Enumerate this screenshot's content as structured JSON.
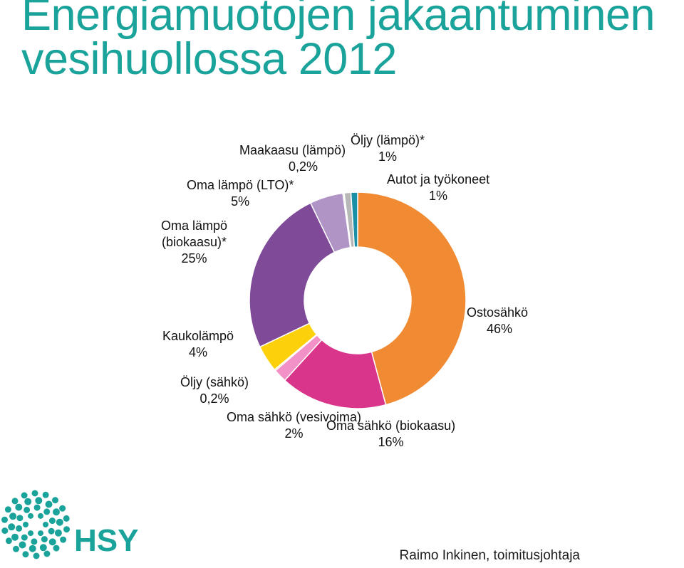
{
  "title": {
    "line1": "Energiamuotojen jakaantuminen",
    "line2": "vesihuollossa 2012"
  },
  "chart_data": {
    "type": "pie",
    "title": "Energiamuotojen jakaantuminen vesihuollossa 2012",
    "donut": true,
    "slices": [
      {
        "label": "Ostosähkö",
        "value": 46,
        "value_label": "46%",
        "color": "#f08a33"
      },
      {
        "label": "Oma sähkö (biokaasu)",
        "value": 16,
        "value_label": "16%",
        "color": "#d9358a"
      },
      {
        "label": "Oma sähkö (vesivoima)",
        "value": 2,
        "value_label": "2%",
        "color": "#f291c7"
      },
      {
        "label": "Öljy (sähkö)",
        "value": 0.2,
        "value_label": "0,2%",
        "color": "#bfa010"
      },
      {
        "label": "Kaukolämpö",
        "value": 4,
        "value_label": "4%",
        "color": "#fcd10c"
      },
      {
        "label": "Oma lämpö (biokaasu)*",
        "value": 25,
        "value_label": "25%",
        "color": "#7f4a97"
      },
      {
        "label": "Oma lämpö (LTO)*",
        "value": 5,
        "value_label": "5%",
        "color": "#b094c6"
      },
      {
        "label": "Maakaasu (lämpö)",
        "value": 0.2,
        "value_label": "0,2%",
        "color": "#cccccc"
      },
      {
        "label": "Öljy (lämpö)*",
        "value": 1,
        "value_label": "1%",
        "color": "#b7b7b7"
      },
      {
        "label": "Autot ja työkoneet",
        "value": 1,
        "value_label": "1%",
        "color": "#1a8fa6"
      }
    ]
  },
  "logo": {
    "text": "HSY",
    "color": "#1aa39a"
  },
  "footer": {
    "author": "Raimo Inkinen, toimitusjohtaja"
  }
}
